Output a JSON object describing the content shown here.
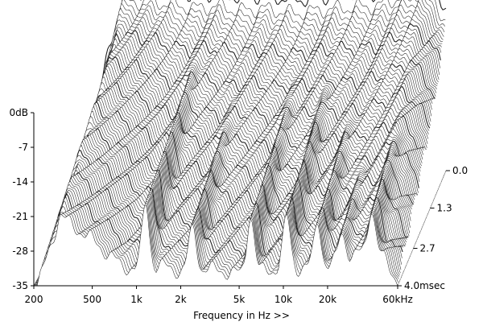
{
  "chart_data": {
    "type": "waterfall",
    "title": "",
    "xlabel": "Frequency in Hz >>",
    "x_scale": "log",
    "x_range_hz": [
      200,
      60000
    ],
    "x_ticks": [
      {
        "value": 200,
        "label": "200"
      },
      {
        "value": 500,
        "label": "500"
      },
      {
        "value": 1000,
        "label": "1k"
      },
      {
        "value": 2000,
        "label": "2k"
      },
      {
        "value": 5000,
        "label": "5k"
      },
      {
        "value": 10000,
        "label": "10k"
      },
      {
        "value": 20000,
        "label": "20k"
      },
      {
        "value": 60000,
        "label": "60kHz"
      }
    ],
    "y_range_db": [
      -35,
      0
    ],
    "y_ticks": [
      {
        "value": 0,
        "label": "0dB"
      },
      {
        "value": -7,
        "label": "-7"
      },
      {
        "value": -14,
        "label": "-14"
      },
      {
        "value": -21,
        "label": "-21"
      },
      {
        "value": -28,
        "label": "-28"
      },
      {
        "value": -35,
        "label": "-35"
      }
    ],
    "time_range_ms": [
      0.0,
      4.0
    ],
    "time_ticks": [
      {
        "value": 0.0,
        "label": "0.0"
      },
      {
        "value": 1.3,
        "label": "1.3"
      },
      {
        "value": 2.7,
        "label": "2.7"
      },
      {
        "value": 4.0,
        "label": "4.0msec"
      }
    ],
    "slice_count": 90,
    "initial_response_db": [
      {
        "hz": 300,
        "db": 1.0
      },
      {
        "hz": 500,
        "db": 1.5
      },
      {
        "hz": 800,
        "db": 1.0
      },
      {
        "hz": 1000,
        "db": 0.5
      },
      {
        "hz": 1500,
        "db": 1.0
      },
      {
        "hz": 2000,
        "db": 0.0
      },
      {
        "hz": 3000,
        "db": 0.5
      },
      {
        "hz": 5000,
        "db": -0.5
      },
      {
        "hz": 10000,
        "db": 0.5
      },
      {
        "hz": 20000,
        "db": 1.0
      },
      {
        "hz": 30000,
        "db": 3.0
      },
      {
        "hz": 40000,
        "db": 5.0
      },
      {
        "hz": 50000,
        "db": 2.0
      },
      {
        "hz": 60000,
        "db": -2.0
      }
    ],
    "resonances": [
      {
        "hz": 1150,
        "db": -4
      },
      {
        "hz": 2400,
        "db": -8
      },
      {
        "hz": 6000,
        "db": -7
      },
      {
        "hz": 10500,
        "db": -6
      },
      {
        "hz": 17000,
        "db": -8
      },
      {
        "hz": 25000,
        "db": -10
      },
      {
        "hz": 40000,
        "db": -6
      }
    ]
  }
}
